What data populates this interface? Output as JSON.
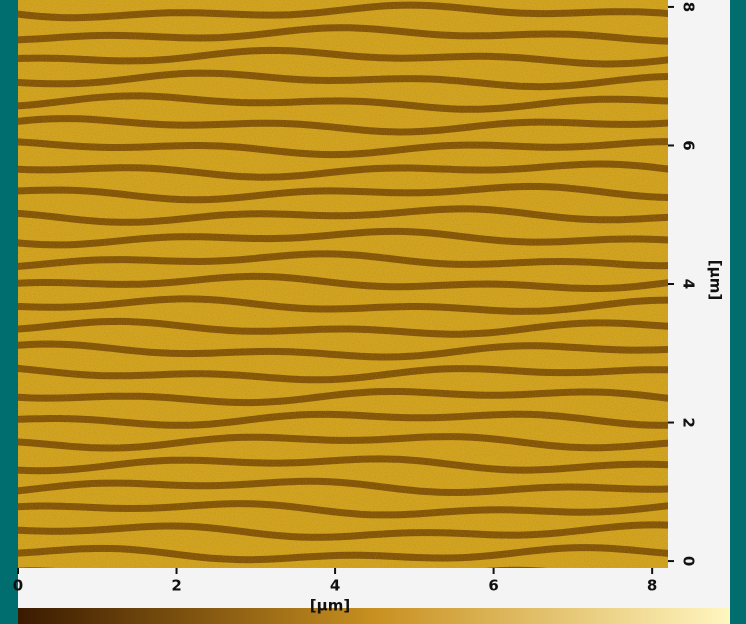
{
  "chart_data": {
    "type": "image",
    "x_label": "[μm]",
    "y_label": "[μm]",
    "xlim": [
      0,
      8.2
    ],
    "xticks": [
      0,
      2,
      4,
      6,
      8
    ],
    "ylim": [
      -0.1,
      8.1
    ],
    "yticks": [
      0,
      2,
      4,
      6,
      8
    ]
  }
}
